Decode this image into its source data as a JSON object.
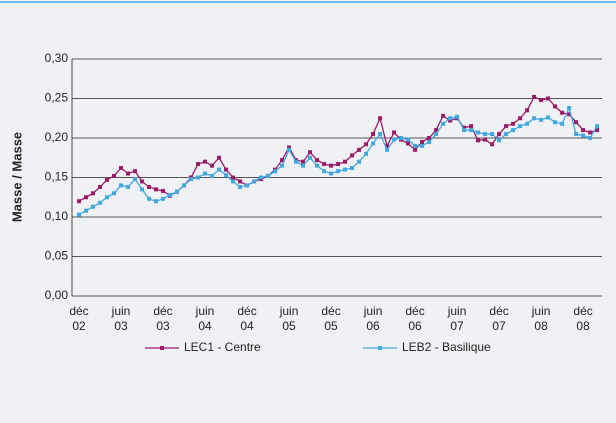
{
  "chart_data": {
    "type": "line",
    "y_label": "Masse / Masse",
    "categories": [
      "déc 02",
      null,
      null,
      null,
      null,
      null,
      "juin 03",
      null,
      null,
      null,
      null,
      null,
      "déc 03",
      null,
      null,
      null,
      null,
      null,
      "juin 04",
      null,
      null,
      null,
      null,
      null,
      "déc 04",
      null,
      null,
      null,
      null,
      null,
      "juin 05",
      null,
      null,
      null,
      null,
      null,
      "déc 05",
      null,
      null,
      null,
      null,
      null,
      "juin 06",
      null,
      null,
      null,
      null,
      null,
      "déc 06",
      null,
      null,
      null,
      null,
      null,
      "juin 07",
      null,
      null,
      null,
      null,
      null,
      "déc 07",
      null,
      null,
      null,
      null,
      null,
      "juin 08",
      null,
      null,
      null,
      null,
      null,
      "déc 08",
      null,
      null
    ],
    "series": [
      {
        "name": "LEC1 - Centre",
        "color": "#9b1b6b",
        "values": [
          0.12,
          0.125,
          0.13,
          0.138,
          0.147,
          0.152,
          0.162,
          0.155,
          0.158,
          0.145,
          0.138,
          0.135,
          0.133,
          0.127,
          0.132,
          0.14,
          0.15,
          0.167,
          0.17,
          0.165,
          0.175,
          0.16,
          0.15,
          0.145,
          0.14,
          0.145,
          0.148,
          0.152,
          0.16,
          0.172,
          0.188,
          0.172,
          0.17,
          0.182,
          0.172,
          0.167,
          0.165,
          0.167,
          0.17,
          0.178,
          0.185,
          0.192,
          0.205,
          0.225,
          0.19,
          0.207,
          0.198,
          0.193,
          0.185,
          0.195,
          0.2,
          0.21,
          0.228,
          0.222,
          0.225,
          0.213,
          0.215,
          0.197,
          0.198,
          0.192,
          0.205,
          0.215,
          0.218,
          0.225,
          0.235,
          0.252,
          0.248,
          0.25,
          0.24,
          0.232,
          0.23,
          0.22,
          0.21,
          0.207,
          0.21
        ]
      },
      {
        "name": "LEB2 - Basilique",
        "color": "#41a9e1",
        "values": [
          0.103,
          0.108,
          0.113,
          0.118,
          0.125,
          0.13,
          0.14,
          0.138,
          0.148,
          0.135,
          0.123,
          0.12,
          0.123,
          0.128,
          0.132,
          0.14,
          0.148,
          0.15,
          0.155,
          0.152,
          0.16,
          0.153,
          0.145,
          0.138,
          0.14,
          0.145,
          0.15,
          0.152,
          0.158,
          0.165,
          0.185,
          0.17,
          0.165,
          0.175,
          0.165,
          0.158,
          0.155,
          0.158,
          0.16,
          0.162,
          0.17,
          0.18,
          0.193,
          0.205,
          0.185,
          0.198,
          0.2,
          0.198,
          0.19,
          0.19,
          0.195,
          0.205,
          0.218,
          0.225,
          0.227,
          0.21,
          0.21,
          0.207,
          0.205,
          0.205,
          0.197,
          0.205,
          0.21,
          0.215,
          0.218,
          0.225,
          0.223,
          0.226,
          0.22,
          0.218,
          0.238,
          0.205,
          0.203,
          0.2,
          0.215
        ]
      }
    ],
    "ylim": [
      0,
      0.3
    ],
    "yticks": [
      {
        "value": 0,
        "label": "0,00"
      },
      {
        "value": 0.05,
        "label": "0,05"
      },
      {
        "value": 0.1,
        "label": "0,10"
      },
      {
        "value": 0.15,
        "label": "0,15"
      },
      {
        "value": 0.2,
        "label": "0,20"
      },
      {
        "value": 0.25,
        "label": "0,25"
      },
      {
        "value": 0.3,
        "label": "0,30"
      }
    ],
    "grid": true,
    "legend": "bottom"
  }
}
